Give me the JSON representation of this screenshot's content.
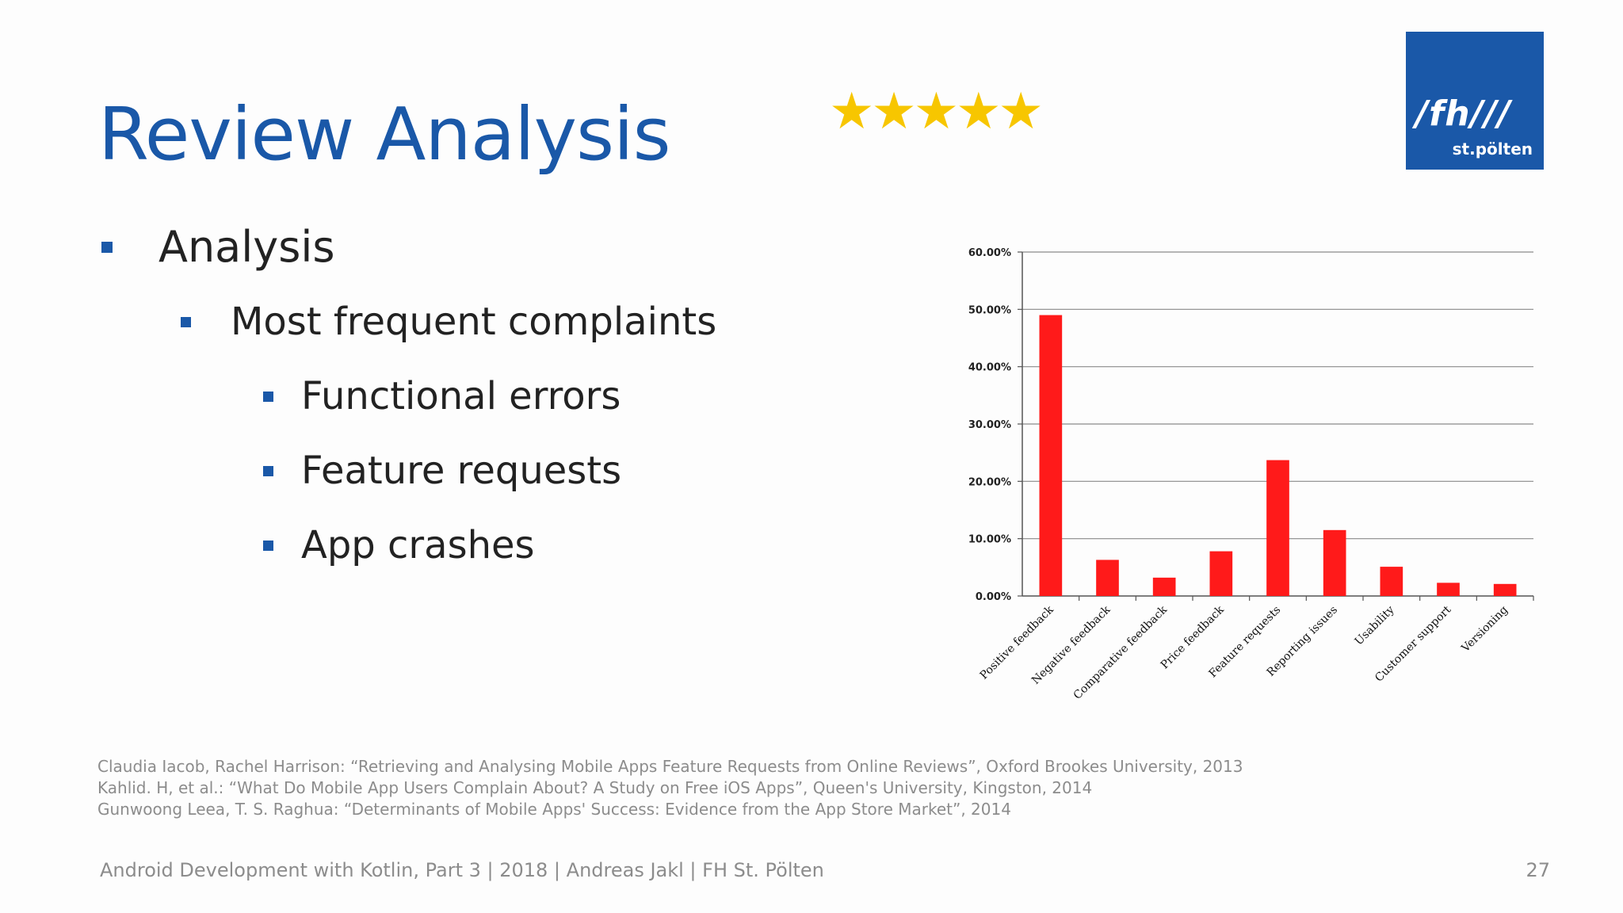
{
  "slide": {
    "title": "Review Analysis",
    "stars": "★★★★★",
    "logo": {
      "main": "/fh///",
      "sub": "st.pölten"
    },
    "bullets": {
      "l1": "Analysis",
      "l2": "Most frequent complaints",
      "l3": [
        "Functional errors",
        "Feature requests",
        "App crashes"
      ]
    },
    "references": [
      "Claudia Iacob, Rachel Harrison: “Retrieving and Analysing Mobile Apps Feature Requests from Online Reviews”, Oxford Brookes University, 2013",
      "Kahlid. H, et al.: “What Do Mobile App Users Complain About? A Study on Free iOS Apps”, Queen's University, Kingston, 2014",
      "Gunwoong Leea, T. S. Raghua: “Determinants of Mobile Apps' Success: Evidence from the App Store Market”, 2014"
    ],
    "footer": "Android Development with Kotlin, Part 3 | 2018 | Andreas Jakl | FH St. Pölten",
    "page_number": "27",
    "colors": {
      "accent": "#1a58a8",
      "bar": "#ff1a1a",
      "stars": "#f7c600"
    }
  },
  "chart_data": {
    "type": "bar",
    "categories": [
      "Positive feedback",
      "Negative feedback",
      "Comparative feedback",
      "Price feedback",
      "Feature requests",
      "Reporting issues",
      "Usability",
      "Customer support",
      "Versioning"
    ],
    "values": [
      49.0,
      6.3,
      3.2,
      7.8,
      23.7,
      11.5,
      5.1,
      2.3,
      2.1
    ],
    "yticks": [
      "0.00%",
      "10.00%",
      "20.00%",
      "30.00%",
      "40.00%",
      "50.00%",
      "60.00%"
    ],
    "ylim": [
      0,
      60
    ],
    "grid": true,
    "title": "",
    "xlabel": "",
    "ylabel": ""
  }
}
